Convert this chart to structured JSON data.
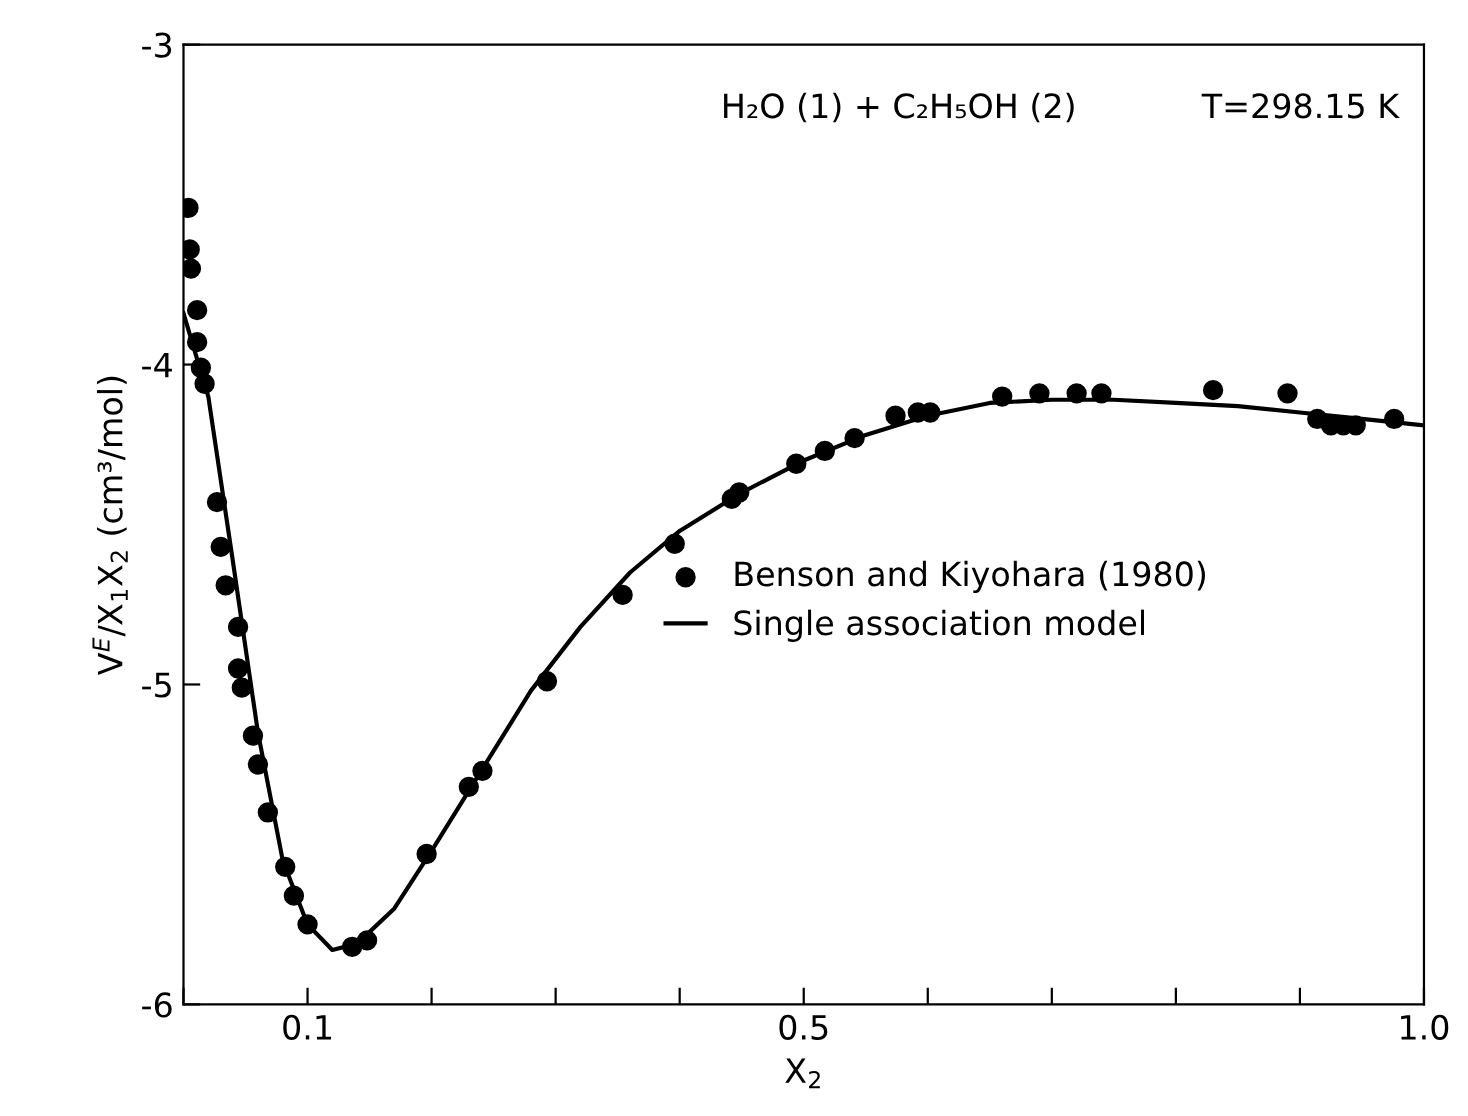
{
  "chart_data": {
    "type": "scatter",
    "xlabel": "X$_{2}$",
    "ylabel": "V$^{E}$/X$_{1}$X$_{2}$ (cm³/mol)",
    "annotations": [
      "H₂O (1) + C₂H₅OH (2)",
      "T=298.15 K"
    ],
    "xlim": [
      0,
      1
    ],
    "ylim": [
      -6,
      -3
    ],
    "xticks": [
      {
        "value": 0,
        "label": null
      },
      0.1,
      {
        "value": 0.2,
        "label": null
      },
      {
        "value": 0.3,
        "label": null
      },
      {
        "value": 0.4,
        "label": null
      },
      0.5,
      {
        "value": 0.6,
        "label": null
      },
      {
        "value": 0.7,
        "label": null
      },
      {
        "value": 0.8,
        "label": null
      },
      {
        "value": 0.9,
        "label": null
      },
      {
        "value": 1,
        "label": "1.0"
      }
    ],
    "yticks": [
      -3,
      -4,
      -5,
      -6
    ],
    "legend": "right",
    "grid": false,
    "series": [
      {
        "name": "Benson and Kiyohara (1980)",
        "marker": "circle",
        "color": "#000000",
        "x": [
          0.004,
          0.005,
          0.006,
          0.011,
          0.011,
          0.014,
          0.017,
          0.027,
          0.03,
          0.034,
          0.044,
          0.044,
          0.047,
          0.056,
          0.06,
          0.068,
          0.082,
          0.089,
          0.1,
          0.136,
          0.148,
          0.196,
          0.23,
          0.241,
          0.293,
          0.354,
          0.396,
          0.442,
          0.448,
          0.494,
          0.517,
          0.541,
          0.574,
          0.592,
          0.602,
          0.66,
          0.69,
          0.72,
          0.74,
          0.83,
          0.89,
          0.914,
          0.925,
          0.935,
          0.945,
          0.976
        ],
        "values": [
          -3.51,
          -3.64,
          -3.7,
          -3.83,
          -3.93,
          -4.01,
          -4.06,
          -4.43,
          -4.57,
          -4.69,
          -4.82,
          -4.95,
          -5.01,
          -5.16,
          -5.25,
          -5.4,
          -5.57,
          -5.66,
          -5.75,
          -5.82,
          -5.8,
          -5.53,
          -5.32,
          -5.27,
          -4.99,
          -4.72,
          -4.56,
          -4.42,
          -4.4,
          -4.31,
          -4.27,
          -4.23,
          -4.16,
          -4.15,
          -4.15,
          -4.1,
          -4.09,
          -4.09,
          -4.09,
          -4.08,
          -4.09,
          -4.17,
          -4.19,
          -4.19,
          -4.19,
          -4.17
        ]
      },
      {
        "name": "Single association model",
        "type": "line",
        "line_style": "solid",
        "marker": "none",
        "color": "#000000",
        "x": [
          0,
          0.02,
          0.04,
          0.06,
          0.08,
          0.1,
          0.12,
          0.14,
          0.17,
          0.2,
          0.24,
          0.28,
          0.32,
          0.36,
          0.4,
          0.45,
          0.5,
          0.55,
          0.6,
          0.65,
          0.7,
          0.75,
          0.8,
          0.85,
          0.9,
          0.95,
          1.0
        ],
        "values": [
          -3.84,
          -4.1,
          -4.62,
          -5.15,
          -5.55,
          -5.75,
          -5.83,
          -5.81,
          -5.7,
          -5.52,
          -5.27,
          -5.02,
          -4.82,
          -4.65,
          -4.52,
          -4.4,
          -4.3,
          -4.22,
          -4.16,
          -4.12,
          -4.11,
          -4.11,
          -4.12,
          -4.13,
          -4.15,
          -4.17,
          -4.19
        ]
      }
    ]
  }
}
